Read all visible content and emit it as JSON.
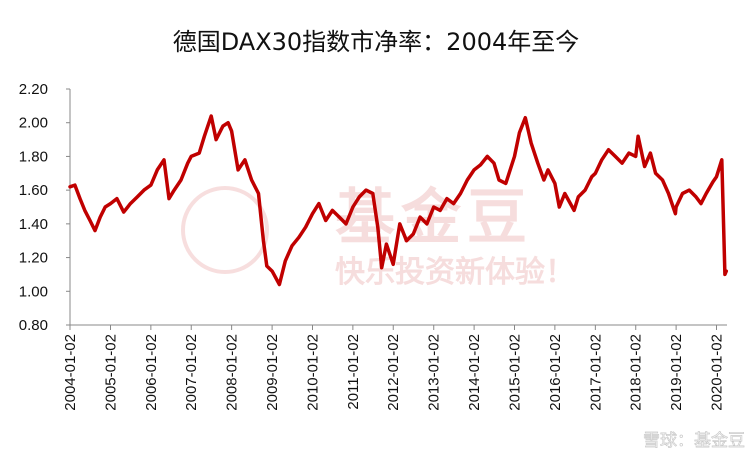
{
  "chart_data": {
    "type": "line",
    "title": "德国DAX30指数市净率：2004年至今",
    "xlabel": "",
    "ylabel": "",
    "ylim": [
      0.8,
      2.2
    ],
    "yticks": [
      "0.80",
      "1.00",
      "1.20",
      "1.40",
      "1.60",
      "1.80",
      "2.00",
      "2.20"
    ],
    "xticks": [
      "2004-01-02",
      "2005-01-02",
      "2006-01-02",
      "2007-01-02",
      "2008-01-02",
      "2009-01-02",
      "2010-01-02",
      "2011-01-02",
      "2012-01-02",
      "2013-01-02",
      "2014-01-02",
      "2015-01-02",
      "2016-01-02",
      "2017-01-02",
      "2018-01-02",
      "2019-01-02",
      "2020-01-02"
    ],
    "grid": false,
    "line_color": "#c00000",
    "series": [
      {
        "name": "",
        "x": [
          "2004-01-02",
          "2004-02-15",
          "2004-04-01",
          "2004-05-15",
          "2004-07-01",
          "2004-08-15",
          "2004-10-01",
          "2004-11-15",
          "2005-01-02",
          "2005-03-01",
          "2005-05-01",
          "2005-07-01",
          "2005-09-01",
          "2005-11-01",
          "2006-01-02",
          "2006-03-01",
          "2006-05-01",
          "2006-06-15",
          "2006-08-01",
          "2006-10-01",
          "2006-12-01",
          "2007-01-02",
          "2007-03-15",
          "2007-05-01",
          "2007-07-01",
          "2007-08-15",
          "2007-10-15",
          "2007-12-01",
          "2008-01-02",
          "2008-03-01",
          "2008-05-01",
          "2008-07-01",
          "2008-09-01",
          "2008-10-15",
          "2008-11-15",
          "2009-01-02",
          "2009-03-09",
          "2009-05-01",
          "2009-07-01",
          "2009-09-01",
          "2009-11-01",
          "2010-01-02",
          "2010-03-01",
          "2010-05-01",
          "2010-07-01",
          "2010-09-01",
          "2010-11-01",
          "2011-01-02",
          "2011-03-01",
          "2011-05-01",
          "2011-07-01",
          "2011-08-15",
          "2011-09-20",
          "2011-11-01",
          "2012-01-02",
          "2012-03-01",
          "2012-05-01",
          "2012-07-01",
          "2012-09-01",
          "2012-11-01",
          "2013-01-02",
          "2013-03-01",
          "2013-05-01",
          "2013-07-01",
          "2013-09-01",
          "2013-11-01",
          "2014-01-02",
          "2014-03-01",
          "2014-05-01",
          "2014-07-01",
          "2014-08-15",
          "2014-10-15",
          "2015-01-02",
          "2015-02-15",
          "2015-04-10",
          "2015-06-01",
          "2015-08-01",
          "2015-09-25",
          "2015-11-01",
          "2016-01-02",
          "2016-02-11",
          "2016-04-01",
          "2016-06-24",
          "2016-08-01",
          "2016-10-01",
          "2016-12-01",
          "2017-01-02",
          "2017-03-01",
          "2017-05-01",
          "2017-07-01",
          "2017-09-01",
          "2017-11-01",
          "2018-01-02",
          "2018-01-23",
          "2018-03-23",
          "2018-05-15",
          "2018-07-01",
          "2018-09-01",
          "2018-10-25",
          "2018-12-27",
          "2019-01-02",
          "2019-03-01",
          "2019-05-01",
          "2019-07-01",
          "2019-08-15",
          "2019-10-01",
          "2019-12-01",
          "2020-01-02",
          "2020-02-19",
          "2020-03-01",
          "2020-03-10",
          "2020-03-18",
          "2020-03-31"
        ],
        "values": [
          1.62,
          1.63,
          1.55,
          1.48,
          1.42,
          1.36,
          1.44,
          1.5,
          1.52,
          1.55,
          1.47,
          1.52,
          1.56,
          1.6,
          1.63,
          1.72,
          1.78,
          1.55,
          1.6,
          1.66,
          1.76,
          1.8,
          1.82,
          1.92,
          2.04,
          1.9,
          1.98,
          2.0,
          1.95,
          1.72,
          1.78,
          1.66,
          1.58,
          1.3,
          1.15,
          1.12,
          1.04,
          1.18,
          1.27,
          1.32,
          1.38,
          1.46,
          1.52,
          1.42,
          1.48,
          1.44,
          1.4,
          1.5,
          1.56,
          1.6,
          1.58,
          1.38,
          1.14,
          1.28,
          1.16,
          1.4,
          1.3,
          1.34,
          1.44,
          1.4,
          1.5,
          1.48,
          1.55,
          1.52,
          1.58,
          1.66,
          1.72,
          1.75,
          1.8,
          1.76,
          1.66,
          1.64,
          1.8,
          1.94,
          2.03,
          1.88,
          1.76,
          1.66,
          1.72,
          1.64,
          1.5,
          1.58,
          1.48,
          1.56,
          1.6,
          1.68,
          1.7,
          1.78,
          1.84,
          1.8,
          1.76,
          1.82,
          1.8,
          1.92,
          1.74,
          1.82,
          1.7,
          1.66,
          1.58,
          1.46,
          1.5,
          1.58,
          1.6,
          1.56,
          1.52,
          1.58,
          1.65,
          1.68,
          1.78,
          1.52,
          1.3,
          1.1,
          1.12
        ]
      }
    ]
  },
  "watermark": {
    "line1": "基金豆",
    "line2": "快乐投资新体验！",
    "corner": "雪球：基金豆"
  }
}
